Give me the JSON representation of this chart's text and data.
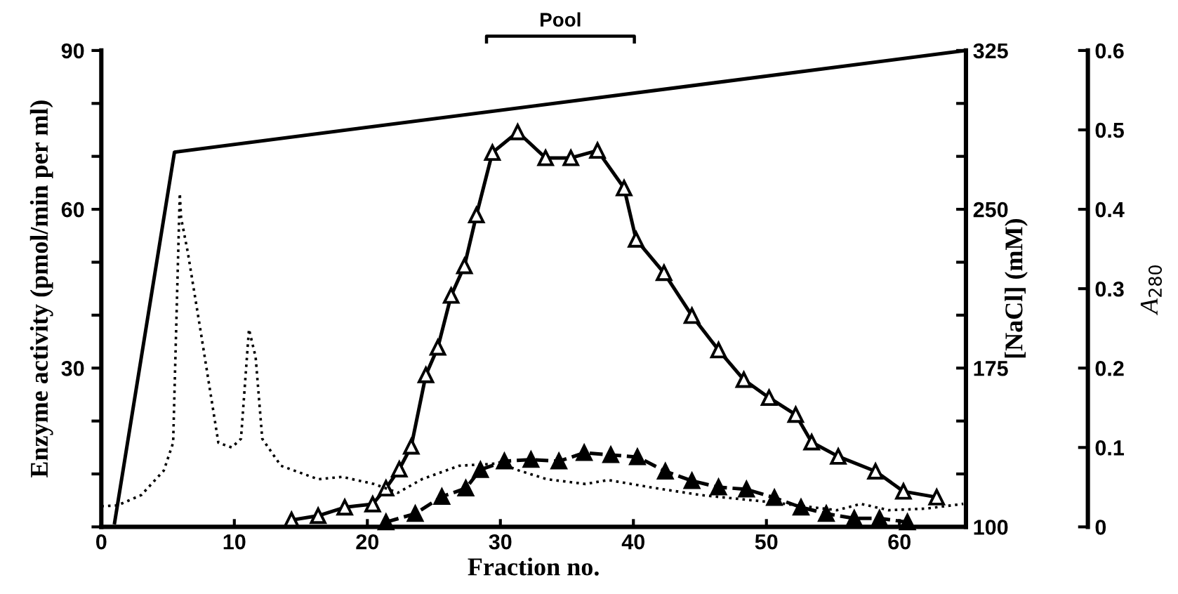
{
  "chart_data": {
    "type": "line",
    "xlabel": "Fraction no.",
    "ylabel": "Enzyme activity (pmol/min per ml)",
    "y2label": "[NaCl] (mM)",
    "y3label": "A$_{280}$",
    "xlim": [
      0,
      65
    ],
    "xticks": [
      0,
      10,
      20,
      30,
      40,
      50,
      60
    ],
    "ylim": [
      0,
      90
    ],
    "yticks": [
      {
        "value": 0,
        "label": null
      },
      {
        "value": 10,
        "label": null
      },
      {
        "value": 20,
        "label": null
      },
      30,
      {
        "value": 40,
        "label": null
      },
      {
        "value": 50,
        "label": null
      },
      60,
      {
        "value": 70,
        "label": null
      },
      {
        "value": 80,
        "label": null
      },
      90
    ],
    "y2lim": [
      100,
      325
    ],
    "y2ticks": [
      100,
      {
        "value": 125,
        "label": null
      },
      {
        "value": 150,
        "label": null
      },
      175,
      {
        "value": 200,
        "label": null
      },
      {
        "value": 225,
        "label": null
      },
      250,
      {
        "value": 275,
        "label": null
      },
      {
        "value": 300,
        "label": null
      },
      325
    ],
    "y3lim": [
      0,
      0.6
    ],
    "y3ticks": [
      0,
      0.1,
      0.2,
      0.3,
      0.4,
      0.5,
      0.6
    ],
    "grid": false,
    "legend": false,
    "annotations": [
      "Pool"
    ],
    "series": [
      {
        "color": "#000000",
        "axis": "y2",
        "line_style": "solid",
        "marker": "none",
        "x": [
          1,
          5.5,
          65
        ],
        "values": [
          102,
          277,
          325
        ]
      },
      {
        "color": "#000000",
        "axis": "y",
        "line_style": "solid",
        "marker": "triangle",
        "x": [
          14.3,
          16.3,
          18.3,
          20.4,
          21.4,
          22.4,
          23.3,
          24.4,
          25.3,
          26.3,
          27.3,
          28.2,
          29.4,
          31.3,
          33.4,
          35.3,
          37.3,
          39.3,
          40.2,
          42.3,
          44.4,
          46.4,
          48.3,
          50.2,
          52.2,
          53.4,
          55.4,
          58.2,
          60.3,
          62.8
        ],
        "values": [
          1.3,
          2.1,
          3.7,
          4.3,
          7.3,
          10.9,
          15.2,
          28.7,
          33.9,
          43.7,
          49.3,
          58.9,
          70.7,
          74.6,
          69.7,
          69.7,
          71.1,
          64.0,
          54.3,
          48.0,
          39.9,
          33.4,
          27.8,
          24.4,
          21.2,
          16.0,
          13.3,
          10.5,
          6.7,
          5.6
        ]
      },
      {
        "color": "#000000",
        "axis": "y",
        "line_style": "dashed",
        "marker": "triangle",
        "x": [
          21.4,
          23.6,
          25.6,
          27.4,
          28.5,
          30.3,
          32.3,
          34.4,
          36.3,
          38.3,
          40.3,
          42.4,
          44.4,
          46.4,
          48.5,
          50.6,
          52.6,
          54.5,
          56.6,
          58.5,
          60.6
        ],
        "values": [
          0.9,
          2.5,
          5.7,
          7.3,
          10.8,
          12.4,
          12.7,
          12.4,
          14.0,
          13.6,
          13.2,
          10.5,
          8.7,
          7.5,
          7.1,
          5.5,
          3.7,
          2.5,
          1.6,
          1.6,
          0.9
        ]
      },
      {
        "color": "#000000",
        "axis": "y3",
        "line_style": "dotted",
        "marker": "none",
        "x": [
          0,
          1.2,
          3,
          4.7,
          5.4,
          5.9,
          6.0,
          6.5,
          7.5,
          8.8,
          9.8,
          10.5,
          11.1,
          11.6,
          12.1,
          13.5,
          16.3,
          18.1,
          20.5,
          22.3,
          24.1,
          26.9,
          30.0,
          31.4,
          33.5,
          36.4,
          38.1,
          41.6,
          45.1,
          50.4,
          55.3,
          57.1,
          59.2,
          62.0,
          64.8
        ],
        "values": [
          0.026,
          0.027,
          0.04,
          0.071,
          0.106,
          0.42,
          0.389,
          0.346,
          0.243,
          0.106,
          0.1,
          0.111,
          0.249,
          0.214,
          0.111,
          0.077,
          0.06,
          0.063,
          0.054,
          0.043,
          0.06,
          0.077,
          0.08,
          0.071,
          0.06,
          0.054,
          0.059,
          0.049,
          0.04,
          0.031,
          0.021,
          0.029,
          0.021,
          0.023,
          0.029
        ]
      }
    ]
  }
}
